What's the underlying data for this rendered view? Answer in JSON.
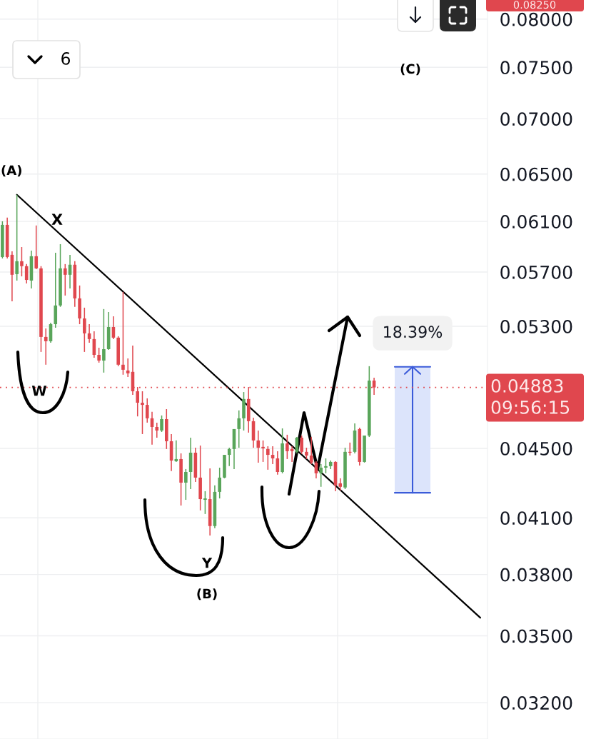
{
  "chart_data": {
    "type": "candlestick",
    "categories": [
      null,
      null,
      null,
      null,
      null,
      null,
      null,
      null,
      null,
      null,
      null,
      null,
      null,
      null,
      null,
      null,
      null,
      null,
      null,
      null,
      null,
      null,
      null,
      null,
      null,
      null,
      null,
      null,
      null,
      null,
      null,
      null,
      null,
      null,
      null,
      null,
      null,
      null,
      null,
      null,
      null,
      null,
      null,
      null,
      null,
      null,
      null,
      null,
      null,
      null,
      null,
      null,
      null,
      null,
      null,
      null,
      null,
      null,
      null,
      null,
      null,
      null,
      null,
      null,
      null,
      null,
      null,
      null,
      null,
      null,
      null,
      null,
      null,
      null,
      null,
      null,
      null,
      null,
      null,
      null,
      null,
      null,
      null,
      null,
      null,
      null,
      null,
      null,
      null,
      null,
      null,
      null,
      null,
      null,
      null,
      null,
      null,
      null,
      null,
      null,
      null
    ],
    "ohlc": [
      [
        0.05816,
        0.06101,
        0.05805,
        0.06072
      ],
      [
        0.06072,
        0.06131,
        0.05805,
        0.05816
      ],
      [
        0.05833,
        0.05861,
        0.05481,
        0.05679
      ],
      [
        0.05684,
        0.06322,
        0.05635,
        0.05783
      ],
      [
        0.05783,
        0.05894,
        0.05667,
        0.05745
      ],
      [
        0.05745,
        0.05761,
        0.05613,
        0.0564
      ],
      [
        0.05635,
        0.05866,
        0.05576,
        0.05822
      ],
      [
        0.05822,
        0.06067,
        0.05722,
        0.05728
      ],
      [
        0.05728,
        0.05745,
        0.05121,
        0.05225
      ],
      [
        0.05225,
        0.05285,
        0.05034,
        0.05195
      ],
      [
        0.05195,
        0.05325,
        0.05185,
        0.05315
      ],
      [
        0.05315,
        0.05849,
        0.0529,
        0.0545
      ],
      [
        0.0545,
        0.05917,
        0.0544,
        0.05728
      ],
      [
        0.05728,
        0.05761,
        0.05523,
        0.05679
      ],
      [
        0.05679,
        0.05833,
        0.05576,
        0.05756
      ],
      [
        0.05756,
        0.05783,
        0.0544,
        0.05502
      ],
      [
        0.05502,
        0.05598,
        0.05315,
        0.05356
      ],
      [
        0.05356,
        0.05434,
        0.05121,
        0.0525
      ],
      [
        0.0525,
        0.05315,
        0.05185,
        0.0521
      ],
      [
        0.0521,
        0.05265,
        0.05081,
        0.05101
      ],
      [
        0.05101,
        0.0515,
        0.05048,
        0.05062
      ],
      [
        0.05062,
        0.05424,
        0.04981,
        0.0514
      ],
      [
        0.0514,
        0.05403,
        0.05135,
        0.05295
      ],
      [
        0.05295,
        0.05372,
        0.0521,
        0.0522
      ],
      [
        0.0522,
        0.0523,
        0.05024,
        0.05034
      ],
      [
        0.05034,
        0.0555,
        0.04967,
        0.05
      ],
      [
        0.04995,
        0.05077,
        0.04952,
        0.04976
      ],
      [
        0.04986,
        0.05165,
        0.04835,
        0.04858
      ],
      [
        0.04858,
        0.04886,
        0.04697,
        0.04784
      ],
      [
        0.04784,
        0.04858,
        0.04587,
        0.0477
      ],
      [
        0.0477,
        0.04812,
        0.04658,
        0.04685
      ],
      [
        0.04685,
        0.04726,
        0.04522,
        0.04631
      ],
      [
        0.04631,
        0.04658,
        0.04565,
        0.04609
      ],
      [
        0.04609,
        0.04703,
        0.046,
        0.0468
      ],
      [
        0.0468,
        0.04743,
        0.04496,
        0.04543
      ],
      [
        0.04543,
        0.04587,
        0.04365,
        0.04427
      ],
      [
        0.04423,
        0.04548,
        0.04419,
        0.04436
      ],
      [
        0.04436,
        0.0447,
        0.04168,
        0.04298
      ],
      [
        0.04298,
        0.04377,
        0.042,
        0.0436
      ],
      [
        0.0436,
        0.04565,
        0.04261,
        0.04474
      ],
      [
        0.04474,
        0.04504,
        0.04302,
        0.04327
      ],
      [
        0.04327,
        0.04517,
        0.04141,
        0.04204
      ],
      [
        0.042,
        0.04249,
        0.04121,
        0.04208
      ],
      [
        0.04204,
        0.04381,
        0.04004,
        0.04055
      ],
      [
        0.04055,
        0.04282,
        0.04043,
        0.04245
      ],
      [
        0.04245,
        0.04385,
        0.04208,
        0.04327
      ],
      [
        0.04327,
        0.04461,
        0.04323,
        0.04461
      ],
      [
        0.04461,
        0.04504,
        0.04394,
        0.04496
      ],
      [
        0.04496,
        0.04618,
        0.04377,
        0.04618
      ],
      [
        0.04618,
        0.04735,
        0.04504,
        0.04685
      ],
      [
        0.04685,
        0.04853,
        0.04609,
        0.04808
      ],
      [
        0.04808,
        0.04886,
        0.04596,
        0.04667
      ],
      [
        0.04667,
        0.04689,
        0.04504,
        0.04548
      ],
      [
        0.04548,
        0.04609,
        0.04415,
        0.04504
      ],
      [
        0.04509,
        0.04548,
        0.04419,
        0.045
      ],
      [
        0.04496,
        0.04513,
        0.04373,
        0.04461
      ],
      [
        0.04461,
        0.04513,
        0.04406,
        0.0444
      ],
      [
        0.0444,
        0.04483,
        0.04344,
        0.0436
      ],
      [
        0.0436,
        0.04622,
        0.04352,
        0.0453
      ],
      [
        0.0453,
        0.04583,
        0.04436,
        0.04483
      ],
      [
        0.04496,
        0.04513,
        0.04419,
        0.04483
      ],
      [
        0.04479,
        0.04569,
        0.0447,
        0.04565
      ],
      [
        0.04565,
        0.04578,
        0.04466,
        0.04479
      ],
      [
        0.04479,
        0.04504,
        0.04436,
        0.04457
      ],
      [
        0.04457,
        0.04569,
        0.04406,
        0.04415
      ],
      [
        0.04415,
        0.04423,
        0.04323,
        0.04352
      ],
      [
        0.04352,
        0.04406,
        0.04274,
        0.04385
      ],
      [
        0.04385,
        0.0444,
        0.04352,
        0.04394
      ],
      [
        0.04394,
        0.04427,
        0.04377,
        0.04419
      ],
      [
        0.04419,
        0.04423,
        0.04249,
        0.04282
      ],
      [
        0.04294,
        0.04323,
        0.04253,
        0.04274
      ],
      [
        0.0427,
        0.04504,
        0.04261,
        0.04479
      ],
      [
        0.04479,
        0.04535,
        0.04457,
        0.04474
      ],
      [
        0.04479,
        0.04653,
        0.0447,
        0.04609
      ],
      [
        0.04618,
        0.04626,
        0.04398,
        0.04419
      ],
      [
        0.04419,
        0.04578,
        0.04415,
        0.04578
      ],
      [
        0.04578,
        0.05024,
        0.04569,
        0.04928
      ],
      [
        0.04928,
        0.04947,
        0.04835,
        0.04883
      ],
      null,
      null,
      null,
      null,
      null,
      null,
      null,
      null,
      null,
      null,
      null,
      null,
      null,
      null,
      null,
      null,
      null,
      null,
      null,
      null,
      null,
      null,
      null
    ],
    "colors": [
      "#59a55a",
      "#e0474e",
      "#e0474e",
      "#59a55a",
      "#e0474e",
      "#e0474e",
      "#59a55a",
      "#e0474e",
      "#e0474e",
      "#e0474e",
      "#59a55a",
      "#59a55a",
      "#59a55a",
      "#e0474e",
      "#59a55a",
      "#e0474e",
      "#e0474e",
      "#e0474e",
      "#e0474e",
      "#e0474e",
      "#e0474e",
      "#59a55a",
      "#59a55a",
      "#e0474e",
      "#e0474e",
      "#e0474e",
      "#e0474e",
      "#e0474e",
      "#e0474e",
      "#e0474e",
      "#e0474e",
      "#e0474e",
      "#e0474e",
      "#59a55a",
      "#e0474e",
      "#e0474e",
      "#59a55a",
      "#e0474e",
      "#59a55a",
      "#59a55a",
      "#e0474e",
      "#e0474e",
      "#59a55a",
      "#e0474e",
      "#59a55a",
      "#59a55a",
      "#59a55a",
      "#59a55a",
      "#59a55a",
      "#59a55a",
      "#59a55a",
      "#e0474e",
      "#e0474e",
      "#e0474e",
      "#e0474e",
      "#e0474e",
      "#e0474e",
      "#e0474e",
      "#59a55a",
      "#e0474e",
      "#e0474e",
      "#59a55a",
      "#e0474e",
      "#e0474e",
      "#e0474e",
      "#e0474e",
      "#59a55a",
      "#59a55a",
      "#59a55a",
      "#e0474e",
      "#e0474e",
      "#59a55a",
      "#e0474e",
      "#59a55a",
      "#e0474e",
      "#59a55a",
      "#59a55a",
      "#e0474e",
      null,
      null,
      null,
      null,
      null,
      null,
      null,
      null,
      null,
      null,
      null,
      null,
      null,
      null,
      null,
      null,
      null,
      null,
      null,
      null,
      null,
      null,
      null
    ],
    "series": [
      {
        "type": "line",
        "color": "#000000",
        "values": [
          null,
          null,
          null,
          0.06322,
          null,
          null,
          null,
          null,
          null,
          null,
          null,
          null,
          null,
          null,
          null,
          null,
          null,
          null,
          null,
          null,
          null,
          null,
          null,
          null,
          null,
          null,
          null,
          null,
          null,
          null,
          null,
          null,
          null,
          null,
          null,
          null,
          null,
          null,
          null,
          null,
          null,
          null,
          null,
          null,
          null,
          null,
          null,
          null,
          null,
          null,
          null,
          null,
          null,
          null,
          null,
          null,
          null,
          null,
          null,
          null,
          null,
          null,
          null,
          null,
          null,
          null,
          null,
          null,
          null,
          null,
          null,
          null,
          null,
          null,
          null,
          null,
          null,
          null,
          null,
          null,
          null,
          null,
          null,
          null,
          null,
          null,
          null,
          null,
          null,
          null,
          null,
          null,
          null,
          null,
          null,
          null,
          null,
          null,
          null,
          0.03586,
          null
        ]
      }
    ],
    "log": "y",
    "ylim": [
      0.03048,
      0.08208
    ],
    "yticks": [
      {
        "value": 0.032,
        "label": "0.03200"
      },
      {
        "value": 0.035,
        "label": "0.03500"
      },
      {
        "value": 0.038,
        "label": "0.03800"
      },
      {
        "value": 0.041,
        "label": "0.04100"
      },
      {
        "value": 0.045,
        "label": "0.04500"
      },
      {
        "value": 0.053,
        "label": "0.05300"
      },
      {
        "value": 0.057,
        "label": "0.05700"
      },
      {
        "value": 0.061,
        "label": "0.06100"
      },
      {
        "value": 0.065,
        "label": "0.06500"
      },
      {
        "value": 0.07,
        "label": "0.07000"
      },
      {
        "value": 0.075,
        "label": "0.07500"
      },
      {
        "value": 0.08,
        "label": "0.08000"
      }
    ],
    "grid": true,
    "tick_labels": "y",
    "ref_lines": [
      {
        "axis": "y",
        "value": 0.04883,
        "label": "0.04883",
        "color": "#e0474e",
        "line_style": "dotted"
      }
    ],
    "bands": [
      {
        "axis": "y",
        "from": 0.0424,
        "to": 0.0502,
        "label": "18.39%",
        "color": "#dce4fb"
      }
    ],
    "annotations": [
      "(A)",
      "X",
      "W",
      "Y",
      "(B)",
      "(C)",
      "09:56:15",
      "0.08250",
      "6"
    ]
  }
}
